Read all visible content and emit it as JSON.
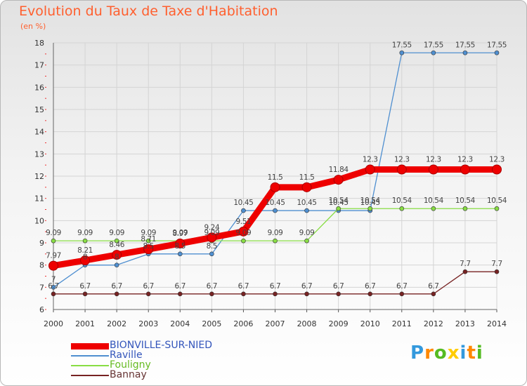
{
  "chart_data": {
    "type": "line",
    "title": "Evolution du Taux de Taxe d'Habitation",
    "ylabel": "(en %)",
    "xlabel": "",
    "ylim": [
      6,
      18
    ],
    "yticks": [
      "6",
      "7",
      "8",
      "9",
      "10",
      "11",
      "12",
      "13",
      "14",
      "15",
      "16",
      "17",
      "18"
    ],
    "categories": [
      "2000",
      "2001",
      "2002",
      "2003",
      "2004",
      "2005",
      "2006",
      "2007",
      "2008",
      "2009",
      "2010",
      "2011",
      "2012",
      "2013",
      "2014"
    ],
    "series": [
      {
        "name": "BIONVILLE-SUR-NIED",
        "color": "#ee0000",
        "values": [
          7.97,
          8.21,
          8.46,
          8.71,
          8.97,
          9.24,
          9.51,
          11.5,
          11.5,
          11.84,
          12.3,
          12.3,
          12.3,
          12.3,
          12.3
        ],
        "labels": [
          "7.97",
          "8.21",
          "8.46",
          "8.71",
          "8.97",
          "9.24",
          "9.51",
          "11.5",
          "11.5",
          "11.84",
          "12.3",
          "12.3",
          "12.3",
          "12.3",
          "12.3"
        ]
      },
      {
        "name": "Raville",
        "color": "#4f8fd0",
        "values": [
          7,
          8,
          8,
          8.5,
          8.5,
          8.5,
          10.45,
          10.45,
          10.45,
          10.45,
          10.45,
          17.55,
          17.55,
          17.55,
          17.55
        ],
        "labels": [
          "7",
          "8",
          "8",
          "8.5",
          "8.5",
          "8.5",
          "10.45",
          "10.45",
          "10.45",
          "10.45",
          "10.45",
          "17.55",
          "17.55",
          "17.55",
          "17.55"
        ]
      },
      {
        "name": "Fouligny",
        "color": "#88dd44",
        "values": [
          9.09,
          9.09,
          9.09,
          9.09,
          9.09,
          9.09,
          9.09,
          9.09,
          9.09,
          10.54,
          10.54,
          10.54,
          10.54,
          10.54,
          10.54
        ],
        "labels": [
          "9.09",
          "9.09",
          "9.09",
          "9.09",
          "9.09",
          "9.09",
          "9.09",
          "9.09",
          "9.09",
          "10.54",
          "10.54",
          "10.54",
          "10.54",
          "10.54",
          "10.54"
        ]
      },
      {
        "name": "Bannay",
        "color": "#772222",
        "values": [
          6.7,
          6.7,
          6.7,
          6.7,
          6.7,
          6.7,
          6.7,
          6.7,
          6.7,
          6.7,
          6.7,
          6.7,
          6.7,
          7.7,
          7.7
        ],
        "labels": [
          "6.7",
          "6.7",
          "6.7",
          "6.7",
          "6.7",
          "6.7",
          "6.7",
          "6.7",
          "6.7",
          "6.7",
          "6.7",
          "6.7",
          "6.7",
          "7.7",
          "7.7"
        ]
      }
    ]
  },
  "logo": {
    "text": "Proxiti"
  }
}
